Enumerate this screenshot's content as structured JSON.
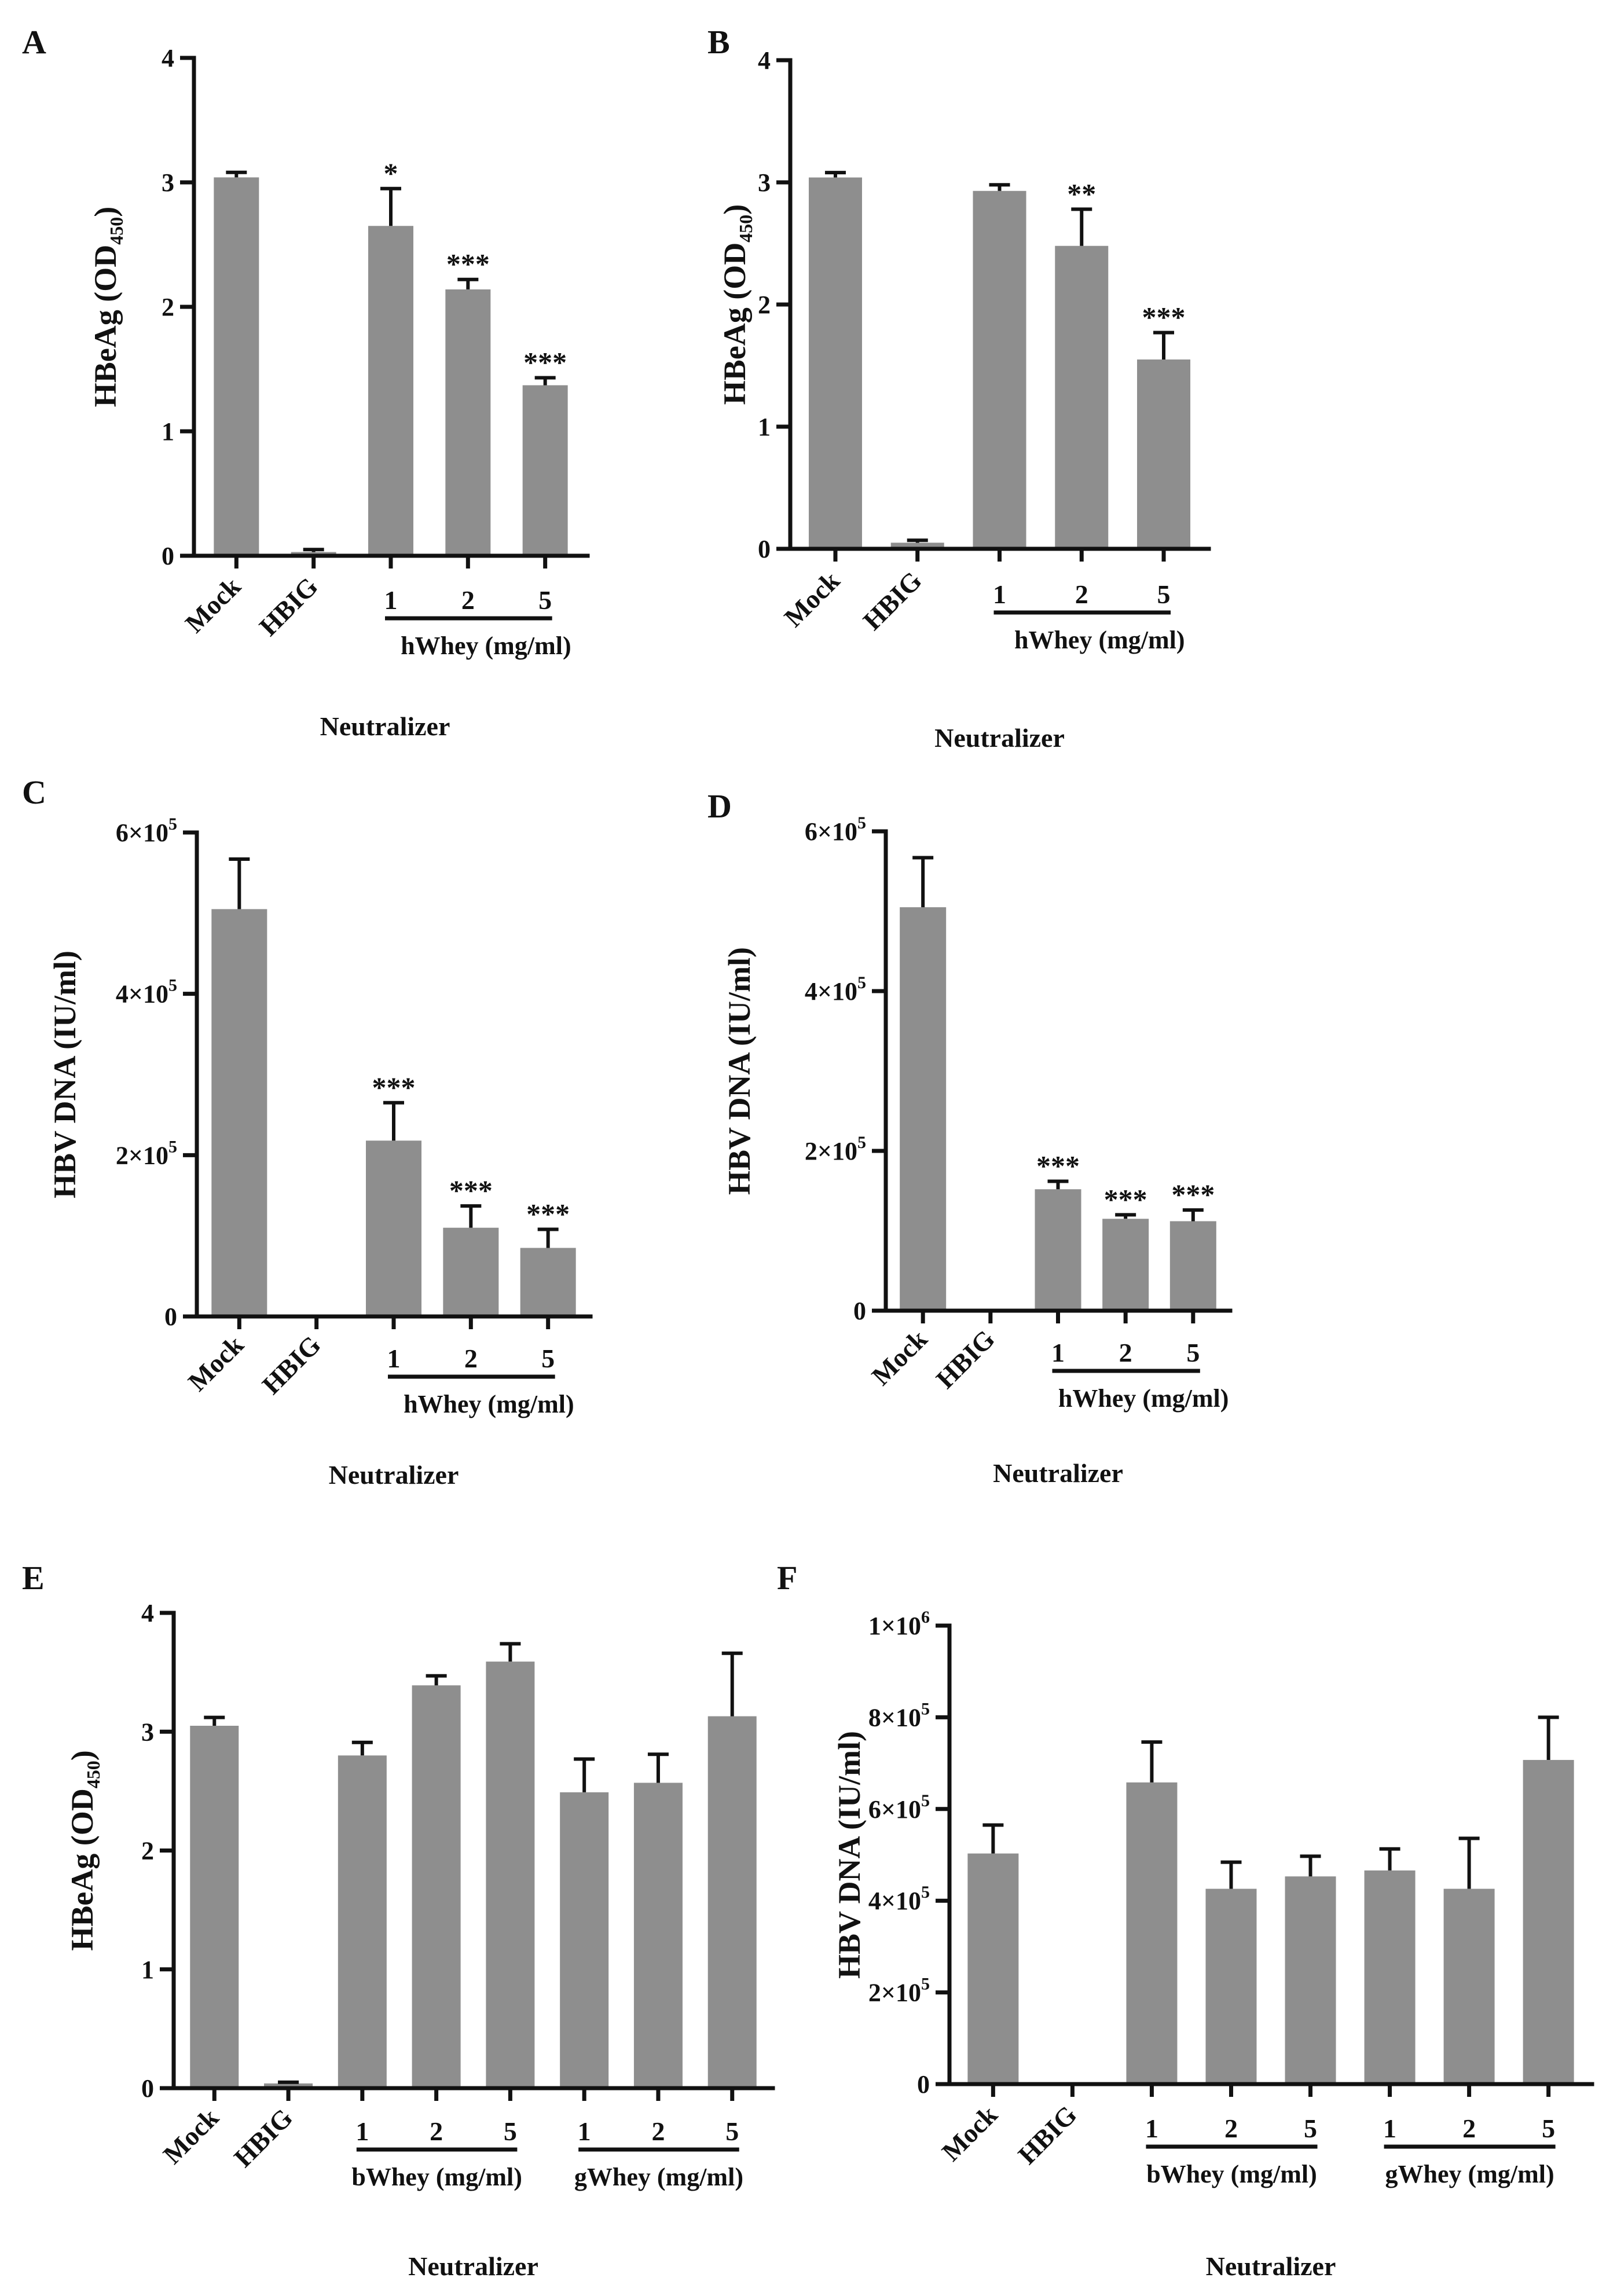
{
  "figure": {
    "colors": {
      "bar": "#8e8e8e",
      "axis": "#111111"
    }
  },
  "chart_data": [
    {
      "panel": "A",
      "type": "bar",
      "ylabel": {
        "main": "HBeAg (OD",
        "sub": "450",
        "end": ")"
      },
      "xlabel": "Neutralizer",
      "ylim": [
        0,
        4
      ],
      "yticks": [
        {
          "value": 0,
          "label": "0"
        },
        {
          "value": 1,
          "label": "1"
        },
        {
          "value": 2,
          "label": "2"
        },
        {
          "value": 3,
          "label": "3"
        },
        {
          "value": 4,
          "label": "4"
        }
      ],
      "categories": [
        "Mock",
        "HBIG",
        "1",
        "2",
        "5"
      ],
      "values": [
        3.04,
        0.03,
        2.65,
        2.14,
        1.37
      ],
      "errors": [
        0.04,
        0.02,
        0.3,
        0.08,
        0.06
      ],
      "stars": [
        "",
        "",
        "*",
        "***",
        "***"
      ],
      "groups": [
        {
          "label": "hWhey (mg/ml)",
          "from": 2,
          "to": 4
        }
      ]
    },
    {
      "panel": "B",
      "type": "bar",
      "ylabel": {
        "main": "HBeAg (OD",
        "sub": "450",
        "end": ")"
      },
      "xlabel": "Neutralizer",
      "ylim": [
        0,
        4
      ],
      "yticks": [
        {
          "value": 0,
          "label": "0"
        },
        {
          "value": 1,
          "label": "1"
        },
        {
          "value": 2,
          "label": "2"
        },
        {
          "value": 3,
          "label": "3"
        },
        {
          "value": 4,
          "label": "4"
        }
      ],
      "categories": [
        "Mock",
        "HBIG",
        "1",
        "2",
        "5"
      ],
      "values": [
        3.04,
        0.05,
        2.93,
        2.48,
        1.55
      ],
      "errors": [
        0.04,
        0.02,
        0.05,
        0.3,
        0.22
      ],
      "stars": [
        "",
        "",
        "",
        "**",
        "***"
      ],
      "groups": [
        {
          "label": "hWhey (mg/ml)",
          "from": 2,
          "to": 4
        }
      ]
    },
    {
      "panel": "C",
      "type": "bar",
      "ylabel": {
        "main": "HBV DNA (IU/ml)",
        "sub": "",
        "end": ""
      },
      "xlabel": "Neutralizer",
      "ylim": [
        0,
        600000
      ],
      "yticks": [
        {
          "value": 0,
          "label": "0"
        },
        {
          "value": 200000,
          "label": "2×10",
          "sup": "5"
        },
        {
          "value": 400000,
          "label": "4×10",
          "sup": "5"
        },
        {
          "value": 600000,
          "label": "6×10",
          "sup": "5"
        }
      ],
      "categories": [
        "Mock",
        "HBIG",
        "1",
        "2",
        "5"
      ],
      "values": [
        505000,
        0,
        218000,
        110000,
        85000
      ],
      "errors": [
        62000,
        0,
        47000,
        27000,
        23000
      ],
      "stars": [
        "",
        "",
        "***",
        "***",
        "***"
      ],
      "groups": [
        {
          "label": "hWhey (mg/ml)",
          "from": 2,
          "to": 4
        }
      ]
    },
    {
      "panel": "D",
      "type": "bar",
      "ylabel": {
        "main": "HBV DNA (IU/ml)",
        "sub": "",
        "end": ""
      },
      "xlabel": "Neutralizer",
      "ylim": [
        0,
        600000
      ],
      "yticks": [
        {
          "value": 0,
          "label": "0"
        },
        {
          "value": 200000,
          "label": "2×10",
          "sup": "5"
        },
        {
          "value": 400000,
          "label": "4×10",
          "sup": "5"
        },
        {
          "value": 600000,
          "label": "6×10",
          "sup": "5"
        }
      ],
      "categories": [
        "Mock",
        "HBIG",
        "1",
        "2",
        "5"
      ],
      "values": [
        505000,
        0,
        152000,
        115000,
        112000
      ],
      "errors": [
        62000,
        0,
        10000,
        5000,
        14000
      ],
      "stars": [
        "",
        "",
        "***",
        "***",
        "***"
      ],
      "groups": [
        {
          "label": "hWhey (mg/ml)",
          "from": 2,
          "to": 4
        }
      ]
    },
    {
      "panel": "E",
      "type": "bar",
      "ylabel": {
        "main": "HBeAg (OD",
        "sub": "450",
        "end": ")"
      },
      "xlabel": "Neutralizer",
      "ylim": [
        0,
        4
      ],
      "yticks": [
        {
          "value": 0,
          "label": "0"
        },
        {
          "value": 1,
          "label": "1"
        },
        {
          "value": 2,
          "label": "2"
        },
        {
          "value": 3,
          "label": "3"
        },
        {
          "value": 4,
          "label": "4"
        }
      ],
      "categories": [
        "Mock",
        "HBIG",
        "1",
        "2",
        "5",
        "1",
        "2",
        "5"
      ],
      "values": [
        3.05,
        0.04,
        2.8,
        3.39,
        3.59,
        2.49,
        2.57,
        3.13
      ],
      "errors": [
        0.07,
        0.01,
        0.11,
        0.08,
        0.15,
        0.28,
        0.24,
        0.53
      ],
      "stars": [
        "",
        "",
        "",
        "",
        "",
        "",
        "",
        ""
      ],
      "groups": [
        {
          "label": "bWhey (mg/ml)",
          "from": 2,
          "to": 4
        },
        {
          "label": "gWhey (mg/ml)",
          "from": 5,
          "to": 7
        }
      ]
    },
    {
      "panel": "F",
      "type": "bar",
      "ylabel": {
        "main": "HBV DNA (IU/ml)",
        "sub": "",
        "end": ""
      },
      "xlabel": "Neutralizer",
      "ylim": [
        0,
        1000000
      ],
      "yticks": [
        {
          "value": 0,
          "label": "0"
        },
        {
          "value": 200000,
          "label": "2×10",
          "sup": "5"
        },
        {
          "value": 400000,
          "label": "4×10",
          "sup": "5"
        },
        {
          "value": 600000,
          "label": "6×10",
          "sup": "5"
        },
        {
          "value": 800000,
          "label": "8×10",
          "sup": "5"
        },
        {
          "value": 1000000,
          "label": "1×10",
          "sup": "6"
        }
      ],
      "categories": [
        "Mock",
        "HBIG",
        "1",
        "2",
        "5",
        "1",
        "2",
        "5"
      ],
      "values": [
        503000,
        0,
        658000,
        426000,
        453000,
        466000,
        426000,
        707000
      ],
      "errors": [
        62000,
        0,
        88000,
        58000,
        44000,
        47000,
        110000,
        93000
      ],
      "stars": [
        "",
        "",
        "",
        "",
        "",
        "",
        "",
        ""
      ],
      "groups": [
        {
          "label": "bWhey (mg/ml)",
          "from": 2,
          "to": 4
        },
        {
          "label": "gWhey (mg/ml)",
          "from": 5,
          "to": 7
        }
      ]
    }
  ]
}
